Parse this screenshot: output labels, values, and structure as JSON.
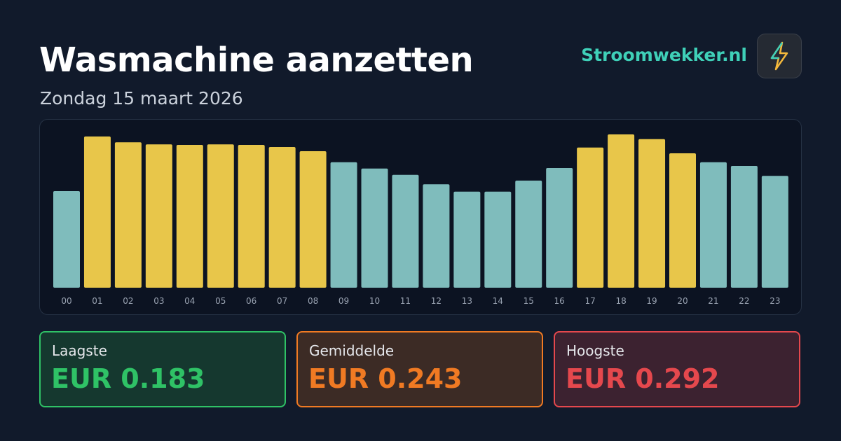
{
  "header": {
    "title": "Wasmachine aanzetten",
    "subtitle": "Zondag 15 maart 2026",
    "brand": "Stroomwekker.nl"
  },
  "chart_data": {
    "type": "bar",
    "categories": [
      "00",
      "01",
      "02",
      "03",
      "04",
      "05",
      "06",
      "07",
      "08",
      "09",
      "10",
      "11",
      "12",
      "13",
      "14",
      "15",
      "16",
      "17",
      "18",
      "19",
      "20",
      "21",
      "22",
      "23"
    ],
    "values": [
      0.184,
      0.288,
      0.277,
      0.273,
      0.272,
      0.273,
      0.272,
      0.268,
      0.26,
      0.239,
      0.227,
      0.215,
      0.197,
      0.183,
      0.183,
      0.204,
      0.228,
      0.267,
      0.292,
      0.283,
      0.256,
      0.239,
      0.232,
      0.213
    ],
    "colors": [
      "#7fbcbc",
      "#e8c64a",
      "#e8c64a",
      "#e8c64a",
      "#e8c64a",
      "#e8c64a",
      "#e8c64a",
      "#e8c64a",
      "#e8c64a",
      "#7fbcbc",
      "#7fbcbc",
      "#7fbcbc",
      "#7fbcbc",
      "#7fbcbc",
      "#7fbcbc",
      "#7fbcbc",
      "#7fbcbc",
      "#e8c64a",
      "#e8c64a",
      "#e8c64a",
      "#e8c64a",
      "#7fbcbc",
      "#7fbcbc",
      "#7fbcbc"
    ]
  },
  "stats": [
    {
      "label": "Laagste",
      "value": "EUR 0.183"
    },
    {
      "label": "Gemiddelde",
      "value": "EUR 0.243"
    },
    {
      "label": "Hoogste",
      "value": "EUR 0.292"
    }
  ]
}
